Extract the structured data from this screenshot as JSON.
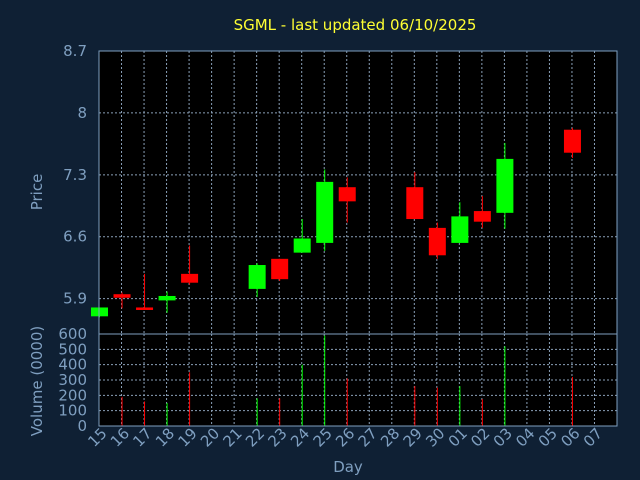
{
  "chart_data": {
    "type": "candlestick",
    "title": "SGML - last updated 06/10/2025",
    "xlabel": "Day",
    "price_ylabel": "Price",
    "volume_ylabel": "Volume (0000)",
    "price_ylim": [
      5.5,
      8.7
    ],
    "price_ticks": [
      "5.9",
      "6.6",
      "7.3",
      "8",
      "8.7"
    ],
    "volume_ylim": [
      0,
      600
    ],
    "volume_ticks": [
      "0",
      "100",
      "200",
      "300",
      "400",
      "500",
      "600"
    ],
    "x_ticks": [
      "15",
      "16",
      "17",
      "18",
      "19",
      "20",
      "21",
      "22",
      "23",
      "24",
      "25",
      "26",
      "27",
      "28",
      "29",
      "30",
      "01",
      "02",
      "03",
      "04",
      "05",
      "06",
      "07"
    ],
    "grid": true,
    "up_color": "#00ff00",
    "down_color": "#ff0000",
    "candles": [
      {
        "day": "15",
        "open": 5.7,
        "high": 5.8,
        "low": 5.69,
        "close": 5.8,
        "volume": 0
      },
      {
        "day": "16",
        "open": 5.95,
        "high": 5.97,
        "low": 5.79,
        "close": 5.91,
        "volume": 190
      },
      {
        "day": "17",
        "open": 5.8,
        "high": 6.18,
        "low": 5.78,
        "close": 5.78,
        "volume": 160
      },
      {
        "day": "18",
        "open": 5.88,
        "high": 5.98,
        "low": 5.74,
        "close": 5.93,
        "volume": 150
      },
      {
        "day": "19",
        "open": 6.18,
        "high": 6.5,
        "low": 6.06,
        "close": 6.08,
        "volume": 350
      },
      {
        "day": "22",
        "open": 6.01,
        "high": 6.3,
        "low": 5.92,
        "close": 6.28,
        "volume": 180
      },
      {
        "day": "23",
        "open": 6.35,
        "high": 6.35,
        "low": 6.1,
        "close": 6.12,
        "volume": 180
      },
      {
        "day": "24",
        "open": 6.42,
        "high": 6.8,
        "low": 6.42,
        "close": 6.58,
        "volume": 400
      },
      {
        "day": "25",
        "open": 6.53,
        "high": 7.36,
        "low": 6.44,
        "close": 7.22,
        "volume": 590
      },
      {
        "day": "26",
        "open": 7.16,
        "high": 7.27,
        "low": 6.76,
        "close": 7.0,
        "volume": 310
      },
      {
        "day": "29",
        "open": 7.16,
        "high": 7.33,
        "low": 6.8,
        "close": 6.8,
        "volume": 260
      },
      {
        "day": "30",
        "open": 6.7,
        "high": 6.76,
        "low": 6.35,
        "close": 6.39,
        "volume": 250
      },
      {
        "day": "01",
        "open": 6.53,
        "high": 6.99,
        "low": 6.53,
        "close": 6.83,
        "volume": 260
      },
      {
        "day": "02",
        "open": 6.89,
        "high": 7.06,
        "low": 6.7,
        "close": 6.77,
        "volume": 175
      },
      {
        "day": "03",
        "open": 6.87,
        "high": 7.66,
        "low": 6.69,
        "close": 7.48,
        "volume": 520
      },
      {
        "day": "06",
        "open": 7.81,
        "high": 7.83,
        "low": 7.49,
        "close": 7.55,
        "volume": 320
      }
    ]
  }
}
